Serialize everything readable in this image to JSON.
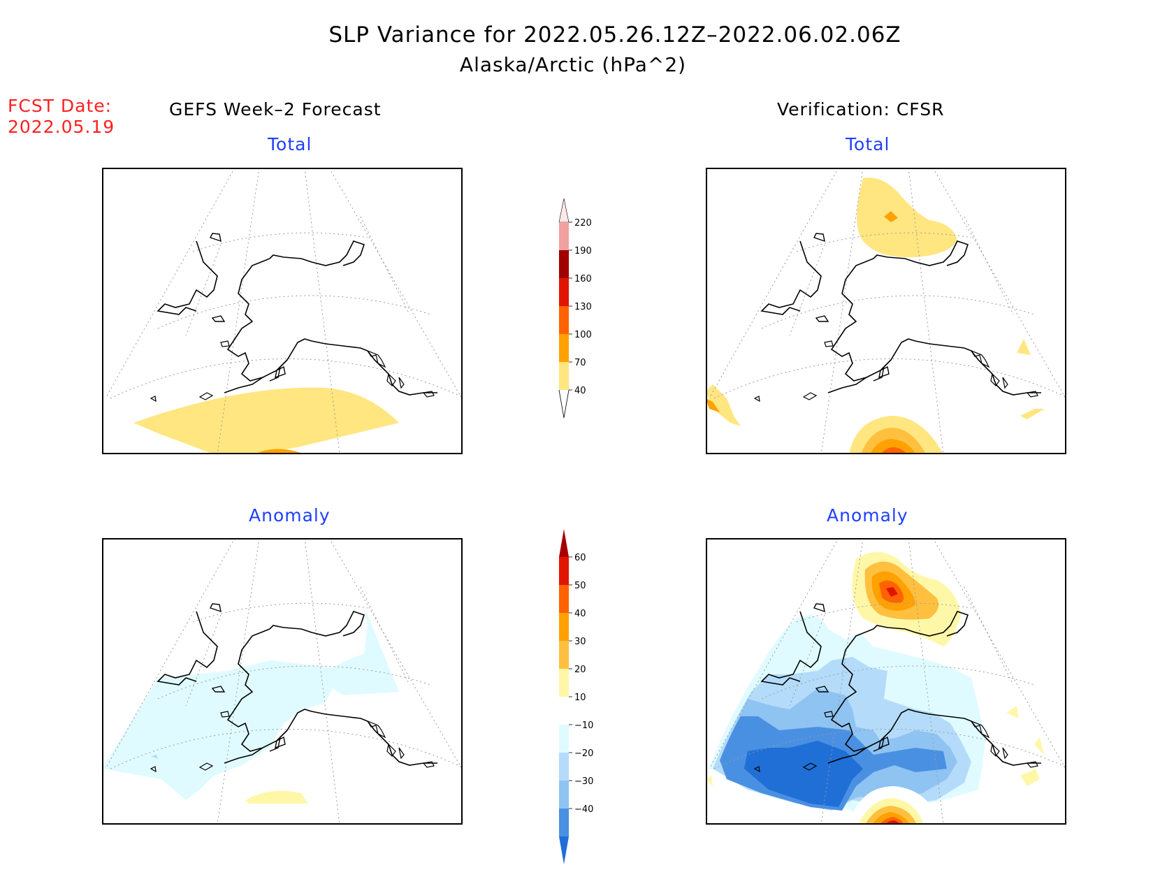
{
  "title": "SLP Variance for 2022.05.26.12Z–2022.06.02.06Z",
  "subtitle": "Alaska/Arctic (hPa^2)",
  "fcst_date": {
    "label": "FCST Date:",
    "value": "2022.05.19"
  },
  "columns": {
    "left": "GEFS Week–2 Forecast",
    "right": "Verification: CFSR"
  },
  "panels": {
    "total_title": "Total",
    "anomaly_title": "Anomaly"
  },
  "colorbars": {
    "total": {
      "levels": [
        "40",
        "70",
        "100",
        "130",
        "160",
        "190",
        "220"
      ],
      "colors": [
        "#ffe680",
        "#ffa100",
        "#ff6200",
        "#e01500",
        "#a10000",
        "#f2a0a0",
        "#ffe8e8"
      ]
    },
    "anomaly": {
      "levels": [
        "60",
        "50",
        "40",
        "30",
        "20",
        "10",
        "−10",
        "−20",
        "−30",
        "−40"
      ],
      "colors_top_to_bottom": [
        "#a80000",
        "#e01500",
        "#ff6200",
        "#ffa100",
        "#ffc040",
        "#fff7a8",
        "#ffffff",
        "#e0fbff",
        "#b4dcfa",
        "#8fc3f2",
        "#4a90e2",
        "#1f6fd6"
      ]
    }
  }
}
